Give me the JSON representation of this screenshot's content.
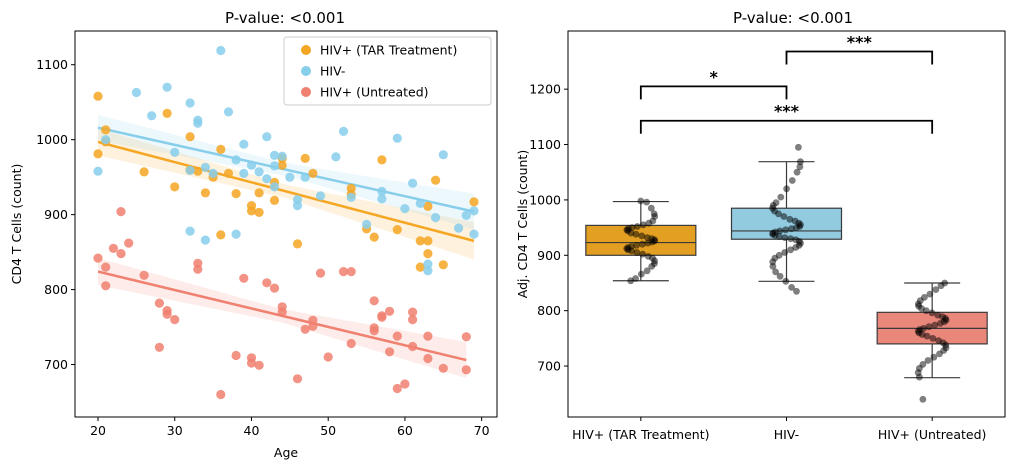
{
  "chart_data": [
    {
      "type": "scatter",
      "title": "P-value: <0.001",
      "xlabel": "Age",
      "ylabel": "CD4 T Cells (count)",
      "xlim": [
        17,
        72
      ],
      "ylim": [
        630,
        1145
      ],
      "xticks": [
        20,
        30,
        40,
        50,
        60,
        70
      ],
      "yticks": [
        700,
        800,
        900,
        1000,
        1100
      ],
      "grid": false,
      "legend_position": "top-right",
      "series": [
        {
          "name": "HIV+ (TAR Treatment)",
          "color": "#F5A623",
          "fit": [
            [
              20,
              997
            ],
            [
              69,
              865
            ]
          ],
          "ci_halfwidth": [
            18,
            25
          ],
          "points": [
            [
              20,
              1058
            ],
            [
              20,
              981
            ],
            [
              21,
              1013
            ],
            [
              21,
              997
            ],
            [
              26,
              957
            ],
            [
              29,
              1035
            ],
            [
              30,
              937
            ],
            [
              32,
              1004
            ],
            [
              32,
              960
            ],
            [
              33,
              958
            ],
            [
              34,
              929
            ],
            [
              35,
              950
            ],
            [
              36,
              873
            ],
            [
              36,
              987
            ],
            [
              37,
              955
            ],
            [
              38,
              928
            ],
            [
              40,
              912
            ],
            [
              40,
              905
            ],
            [
              41,
              929
            ],
            [
              41,
              903
            ],
            [
              43,
              943
            ],
            [
              43,
              919
            ],
            [
              44,
              975
            ],
            [
              44,
              966
            ],
            [
              46,
              861
            ],
            [
              47,
              975
            ],
            [
              48,
              955
            ],
            [
              53,
              935
            ],
            [
              53,
              927
            ],
            [
              55,
              881
            ],
            [
              56,
              870
            ],
            [
              57,
              973
            ],
            [
              59,
              880
            ],
            [
              62,
              830
            ],
            [
              62,
              865
            ],
            [
              63,
              865
            ],
            [
              63,
              848
            ],
            [
              63,
              911
            ],
            [
              64,
              946
            ],
            [
              65,
              833
            ],
            [
              69,
              917
            ]
          ]
        },
        {
          "name": "HIV-",
          "color": "#87CEEB",
          "fit": [
            [
              20,
              1016
            ],
            [
              69,
              904
            ]
          ],
          "ci_halfwidth": [
            17,
            24
          ],
          "points": [
            [
              20,
              958
            ],
            [
              21,
              1000
            ],
            [
              25,
              1063
            ],
            [
              27,
              1032
            ],
            [
              29,
              1070
            ],
            [
              30,
              983
            ],
            [
              32,
              1049
            ],
            [
              32,
              959
            ],
            [
              32,
              878
            ],
            [
              33,
              1026
            ],
            [
              33,
              1022
            ],
            [
              34,
              866
            ],
            [
              34,
              963
            ],
            [
              35,
              955
            ],
            [
              36,
              1119
            ],
            [
              37,
              1037
            ],
            [
              38,
              874
            ],
            [
              38,
              973
            ],
            [
              39,
              955
            ],
            [
              39,
              994
            ],
            [
              40,
              966
            ],
            [
              41,
              957
            ],
            [
              42,
              1004
            ],
            [
              42,
              948
            ],
            [
              43,
              937
            ],
            [
              43,
              979
            ],
            [
              43,
              965
            ],
            [
              44,
              978
            ],
            [
              45,
              950
            ],
            [
              46,
              920
            ],
            [
              46,
              912
            ],
            [
              47,
              950
            ],
            [
              49,
              925
            ],
            [
              51,
              977
            ],
            [
              52,
              1011
            ],
            [
              53,
              923
            ],
            [
              55,
              887
            ],
            [
              57,
              931
            ],
            [
              57,
              921
            ],
            [
              59,
              1002
            ],
            [
              60,
              908
            ],
            [
              61,
              942
            ],
            [
              62,
              915
            ],
            [
              63,
              825
            ],
            [
              63,
              834
            ],
            [
              64,
              896
            ],
            [
              65,
              980
            ],
            [
              67,
              882
            ],
            [
              68,
              899
            ],
            [
              69,
              905
            ],
            [
              69,
              874
            ]
          ]
        },
        {
          "name": "HIV+ (Untreated)",
          "color": "#F08070",
          "fit": [
            [
              20,
              824
            ],
            [
              68,
              706
            ]
          ],
          "ci_halfwidth": [
            18,
            24
          ],
          "points": [
            [
              20,
              842
            ],
            [
              21,
              830
            ],
            [
              21,
              805
            ],
            [
              22,
              855
            ],
            [
              23,
              904
            ],
            [
              23,
              848
            ],
            [
              24,
              862
            ],
            [
              26,
              819
            ],
            [
              28,
              723
            ],
            [
              28,
              782
            ],
            [
              29,
              772
            ],
            [
              29,
              767
            ],
            [
              30,
              760
            ],
            [
              33,
              827
            ],
            [
              33,
              835
            ],
            [
              36,
              660
            ],
            [
              38,
              712
            ],
            [
              39,
              815
            ],
            [
              40,
              702
            ],
            [
              40,
              709
            ],
            [
              41,
              699
            ],
            [
              42,
              809
            ],
            [
              43,
              802
            ],
            [
              44,
              777
            ],
            [
              44,
              770
            ],
            [
              46,
              681
            ],
            [
              47,
              747
            ],
            [
              48,
              751
            ],
            [
              48,
              759
            ],
            [
              49,
              822
            ],
            [
              50,
              710
            ],
            [
              52,
              824
            ],
            [
              53,
              728
            ],
            [
              53,
              824
            ],
            [
              56,
              749
            ],
            [
              56,
              745
            ],
            [
              56,
              785
            ],
            [
              57,
              765
            ],
            [
              57,
              763
            ],
            [
              58,
              771
            ],
            [
              58,
              717
            ],
            [
              59,
              668
            ],
            [
              59,
              738
            ],
            [
              60,
              674
            ],
            [
              61,
              760
            ],
            [
              61,
              724
            ],
            [
              61,
              770
            ],
            [
              63,
              738
            ],
            [
              63,
              708
            ],
            [
              65,
              695
            ],
            [
              68,
              693
            ],
            [
              68,
              737
            ]
          ]
        }
      ]
    },
    {
      "type": "box",
      "title": "P-value: <0.001",
      "xlabel": "",
      "ylabel": "Adj. CD4 T Cells (count)",
      "ylim": [
        608,
        1305
      ],
      "yticks": [
        700,
        800,
        900,
        1000,
        1100,
        1200
      ],
      "grid": false,
      "categories": [
        "HIV+ (TAR Treatment)",
        "HIV-",
        "HIV+ (Untreated)"
      ],
      "boxes": [
        {
          "category": "HIV+ (TAR Treatment)",
          "color": "#E39F22",
          "whisker_low": 854,
          "q1": 900,
          "median": 923,
          "q3": 954,
          "whisker_high": 997
        },
        {
          "category": "HIV-",
          "color": "#92CAE0",
          "whisker_low": 853,
          "q1": 929,
          "median": 944,
          "q3": 985,
          "whisker_high": 1069
        },
        {
          "category": "HIV+ (Untreated)",
          "color": "#E8877A",
          "whisker_low": 679,
          "q1": 740,
          "median": 768,
          "q3": 797,
          "whisker_high": 850
        }
      ],
      "outliers": [
        {
          "category": "HIV-",
          "values": [
            1095,
            835,
            842
          ]
        },
        {
          "category": "HIV+ (Untreated)",
          "values": [
            640
          ]
        }
      ],
      "significance": [
        {
          "from": "HIV+ (TAR Treatment)",
          "to": "HIV-",
          "label": "*",
          "level": 1205
        },
        {
          "from": "HIV-",
          "to": "HIV+ (Untreated)",
          "label": "***",
          "level": 1268
        },
        {
          "from": "HIV+ (TAR Treatment)",
          "to": "HIV+ (Untreated)",
          "label": "***",
          "level": 1143
        }
      ],
      "jitter_points": {
        "HIV+ (TAR Treatment)": [
          998,
          996,
          985,
          975,
          970,
          962,
          958,
          955,
          952,
          950,
          948,
          946,
          944,
          940,
          938,
          935,
          932,
          930,
          928,
          926,
          924,
          922,
          920,
          918,
          916,
          914,
          912,
          910,
          908,
          905,
          902,
          898,
          895,
          890,
          885,
          880,
          872,
          866,
          858,
          854
        ],
        "HIV-": [
          1095,
          1069,
          1060,
          1050,
          1035,
          1020,
          1005,
          995,
          990,
          985,
          980,
          975,
          970,
          965,
          962,
          958,
          955,
          952,
          950,
          948,
          946,
          944,
          942,
          940,
          938,
          936,
          934,
          932,
          930,
          928,
          925,
          922,
          918,
          914,
          910,
          905,
          900,
          895,
          888,
          880,
          870,
          862,
          853,
          842,
          835
        ],
        "HIV+ (Untreated)": [
          850,
          845,
          838,
          830,
          824,
          818,
          812,
          808,
          804,
          800,
          796,
          792,
          789,
          786,
          783,
          780,
          777,
          774,
          771,
          768,
          766,
          763,
          760,
          757,
          754,
          750,
          746,
          742,
          738,
          733,
          728,
          722,
          716,
          710,
          703,
          696,
          688,
          680,
          640
        ]
      }
    }
  ]
}
